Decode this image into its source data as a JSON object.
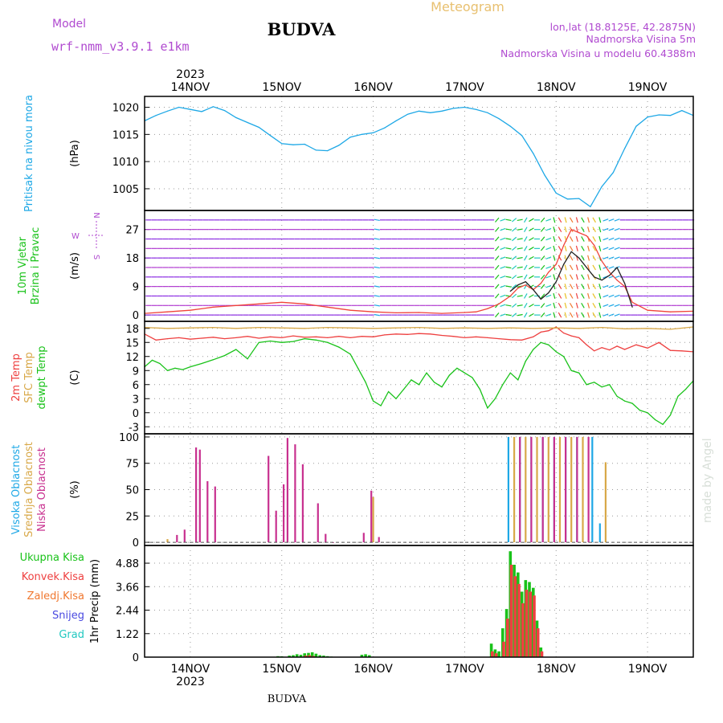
{
  "header": {
    "model_label": "Model",
    "model_name": "wrf-nmm_v3.9.1 e1km",
    "location": "BUDVA",
    "title": "Meteogram",
    "coords": "lon,lat (18.8125E, 42.2875N)",
    "altitude": "Nadmorska Visina 5m",
    "model_altitude": "Nadmorska Visina u modelu 60.4388m"
  },
  "footer": {
    "location": "BUDVA",
    "credit": "made by Angel"
  },
  "colors": {
    "pressure": "#1ea8e6",
    "wind_label": "#19c219",
    "wind_speed": "#f0433a",
    "wind_dir": "#202020",
    "temp2m": "#ee4040",
    "sfc_temp": "#d8a848",
    "dewpt": "#19c219",
    "cloud_high": "#1ea8e6",
    "cloud_mid": "#d8a848",
    "cloud_low": "#c8308f",
    "precip_total": "#19c219",
    "precip_conv": "#ee4040",
    "precip_frz": "#f07830",
    "snow": "#4a4ae0",
    "hail": "#20c8c0",
    "purple_text": "#b04ad0",
    "gold_text": "#e8c070"
  },
  "time_axis": {
    "year": "2023",
    "ticks": [
      "14NOV",
      "15NOV",
      "16NOV",
      "17NOV",
      "18NOV",
      "19NOV"
    ],
    "tick_hours": [
      0,
      24,
      48,
      72,
      96,
      120
    ],
    "range_hours": [
      -12,
      132
    ]
  },
  "chart_data": [
    {
      "type": "line",
      "name": "pressure",
      "label_lines": [
        "Pritisak na nivou mora"
      ],
      "unit": "(hPa)",
      "yticks": [
        1005,
        1010,
        1015,
        1020
      ],
      "ylim": [
        1001,
        1022
      ],
      "series": [
        {
          "color_key": "pressure",
          "x": [
            -12,
            -9,
            -6,
            -3,
            0,
            3,
            6,
            9,
            12,
            15,
            18,
            21,
            24,
            27,
            30,
            33,
            36,
            39,
            42,
            45,
            48,
            51,
            54,
            57,
            60,
            63,
            66,
            69,
            72,
            75,
            78,
            81,
            84,
            87,
            90,
            93,
            96,
            99,
            102,
            105,
            108,
            111,
            114,
            117,
            120,
            123,
            126,
            129,
            132
          ],
          "y": [
            1017.5,
            1018.5,
            1019.3,
            1020,
            1019.6,
            1019.2,
            1020.1,
            1019.4,
            1018.1,
            1017.2,
            1016.3,
            1014.8,
            1013.3,
            1013.1,
            1013.2,
            1012.1,
            1012.0,
            1013.0,
            1014.5,
            1015.0,
            1015.3,
            1016.2,
            1017.5,
            1018.7,
            1019.3,
            1019.0,
            1019.3,
            1019.8,
            1020.0,
            1019.6,
            1019.0,
            1017.9,
            1016.5,
            1014.8,
            1011.5,
            1007.5,
            1004.2,
            1003.1,
            1003.2,
            1001.7,
            1005.4,
            1008.0,
            1012.4,
            1016.5,
            1018.2,
            1018.6,
            1018.5,
            1019.4,
            1018.5
          ]
        }
      ]
    },
    {
      "type": "line",
      "name": "wind",
      "label_lines": [
        "10m Vjetar",
        "Brzina i Pravac"
      ],
      "unit": "(m/s)",
      "compass": {
        "n": "N",
        "w": "W",
        "s": "S"
      },
      "yticks": [
        0,
        9,
        18,
        27
      ],
      "ylim": [
        -2,
        33
      ],
      "barb_levels_ms": [
        0,
        3,
        6,
        9,
        12,
        15,
        18,
        21,
        24,
        27,
        30,
        33
      ],
      "series": [
        {
          "color_key": "wind_speed",
          "x": [
            -12,
            -6,
            0,
            6,
            12,
            18,
            24,
            30,
            36,
            42,
            48,
            54,
            60,
            66,
            72,
            75,
            78,
            81,
            84,
            86,
            88,
            90,
            92,
            94,
            96,
            98,
            100,
            102,
            104,
            106,
            108,
            110,
            112,
            114,
            116,
            120,
            126,
            132
          ],
          "y": [
            0.5,
            1.0,
            1.5,
            2.5,
            3.0,
            3.5,
            4.0,
            3.5,
            2.5,
            1.5,
            1.0,
            0.7,
            0.8,
            0.5,
            0.8,
            1.0,
            2.0,
            3.5,
            6.0,
            8.5,
            9.5,
            8.0,
            10.0,
            13.5,
            16.0,
            22.0,
            27.0,
            26.0,
            25.0,
            22.0,
            17.0,
            13.5,
            11.0,
            9.0,
            4.0,
            1.5,
            1.0,
            1.2
          ]
        },
        {
          "color_key": "wind_dir",
          "x": [
            84,
            86,
            88,
            90,
            92,
            94,
            96,
            98,
            100,
            102,
            104,
            106,
            108,
            110,
            112,
            114,
            116
          ],
          "y": [
            7.5,
            9.5,
            10.5,
            8.0,
            5.0,
            7.0,
            10.5,
            16.0,
            20.0,
            18.0,
            15.0,
            12.0,
            11.0,
            12.5,
            15.0,
            10.0,
            2.5
          ]
        }
      ]
    },
    {
      "type": "line",
      "name": "temperature",
      "label_lines": [
        "2m Temp",
        "SFC Temp",
        "dewpt Temp"
      ],
      "unit": "(C)",
      "yticks": [
        -3,
        0,
        3,
        6,
        9,
        12,
        15,
        18
      ],
      "ylim": [
        -4.5,
        19.5
      ],
      "series": [
        {
          "name": "2m Temp",
          "color_key": "temp2m",
          "x": [
            -12,
            -9,
            -6,
            -3,
            0,
            3,
            6,
            9,
            12,
            15,
            18,
            21,
            24,
            27,
            30,
            33,
            36,
            39,
            42,
            45,
            48,
            51,
            54,
            57,
            60,
            63,
            66,
            69,
            72,
            75,
            78,
            81,
            84,
            87,
            90,
            92,
            94,
            96,
            98,
            100,
            102,
            104,
            106,
            108,
            110,
            112,
            114,
            117,
            120,
            123,
            126,
            129,
            132
          ],
          "y": [
            16.8,
            15.5,
            15.8,
            16.0,
            15.7,
            15.9,
            16.1,
            15.8,
            16.0,
            16.3,
            15.9,
            16.2,
            16.0,
            16.4,
            16.1,
            16.2,
            16.0,
            16.3,
            16.0,
            16.3,
            16.2,
            16.6,
            16.8,
            16.7,
            16.9,
            16.8,
            16.5,
            16.3,
            16.0,
            16.2,
            16.0,
            15.8,
            15.6,
            15.5,
            16.2,
            17.2,
            17.5,
            18.3,
            17.0,
            16.4,
            16.0,
            14.5,
            13.2,
            13.9,
            13.4,
            14.2,
            13.5,
            14.5,
            13.8,
            15.0,
            13.3,
            13.2,
            13.0
          ]
        },
        {
          "name": "SFC Temp",
          "color_key": "sfc_temp",
          "x": [
            -12,
            -6,
            0,
            6,
            12,
            18,
            24,
            30,
            36,
            42,
            48,
            54,
            60,
            66,
            72,
            78,
            84,
            90,
            96,
            102,
            108,
            114,
            120,
            126,
            132
          ],
          "y": [
            18.2,
            18.0,
            18.1,
            18.2,
            18.0,
            18.2,
            18.1,
            18.0,
            18.2,
            18.1,
            18.0,
            18.1,
            18.2,
            18.0,
            18.1,
            18.0,
            18.1,
            18.0,
            18.1,
            18.0,
            18.2,
            17.9,
            18.0,
            17.8,
            18.3
          ]
        },
        {
          "name": "dewpt Temp",
          "color_key": "dewpt",
          "x": [
            -12,
            -10,
            -8,
            -6,
            -4,
            -2,
            0,
            3,
            6,
            9,
            12,
            15,
            18,
            21,
            24,
            27,
            30,
            33,
            36,
            39,
            42,
            44,
            46,
            48,
            50,
            52,
            54,
            56,
            58,
            60,
            62,
            64,
            66,
            68,
            70,
            72,
            74,
            76,
            78,
            80,
            82,
            84,
            86,
            88,
            90,
            92,
            94,
            96,
            98,
            100,
            102,
            104,
            106,
            108,
            110,
            112,
            114,
            116,
            118,
            120,
            122,
            124,
            126,
            128,
            130,
            132
          ],
          "y": [
            9.8,
            11.2,
            10.5,
            9.0,
            9.5,
            9.2,
            9.8,
            10.5,
            11.3,
            12.2,
            13.5,
            11.5,
            15.0,
            15.3,
            15.0,
            15.2,
            15.8,
            15.5,
            15.0,
            14.0,
            12.5,
            9.5,
            6.5,
            2.5,
            1.5,
            4.5,
            3.0,
            5.0,
            7.0,
            6.0,
            8.5,
            6.5,
            5.5,
            8.0,
            9.5,
            8.5,
            7.5,
            5.0,
            1.0,
            3.0,
            6.0,
            8.5,
            7.0,
            11.0,
            13.5,
            15.0,
            14.5,
            13.0,
            12.0,
            9.0,
            8.5,
            6.0,
            6.5,
            5.5,
            6.0,
            3.5,
            2.5,
            2.0,
            0.5,
            0.0,
            -1.5,
            -2.5,
            -0.5,
            3.5,
            5.0,
            6.8
          ]
        }
      ]
    },
    {
      "type": "bar",
      "name": "clouds",
      "label_lines": [
        "Visoka Oblacnost",
        "Srednja Oblacnost",
        "Niska Oblacnost"
      ],
      "unit": "(%)",
      "yticks": [
        0,
        25,
        50,
        75,
        100
      ],
      "ylim": [
        -3,
        103
      ],
      "series": [
        {
          "name": "Visoka Oblacnost",
          "color_key": "cloud_high",
          "x": [
            84,
            87,
            90,
            93,
            96,
            99,
            102,
            106,
            108
          ],
          "y": [
            100,
            100,
            100,
            100,
            100,
            100,
            100,
            100,
            18
          ]
        },
        {
          "name": "Srednja Oblacnost",
          "color_key": "cloud_mid",
          "x": [
            -6,
            48,
            85,
            88,
            91,
            94,
            97,
            100,
            103,
            109
          ],
          "y": [
            3,
            43,
            100,
            100,
            100,
            100,
            100,
            100,
            100,
            76
          ]
        },
        {
          "name": "Niska Oblacnost",
          "color_key": "cloud_low",
          "x": [
            -4,
            -2,
            1,
            2,
            4,
            6,
            20,
            22,
            24,
            25,
            27,
            29,
            33,
            35,
            37,
            45,
            47,
            49,
            86,
            89,
            92,
            95,
            98,
            101,
            104
          ],
          "y": [
            7,
            12,
            90,
            88,
            58,
            53,
            82,
            30,
            55,
            99,
            93,
            74,
            37,
            8,
            0,
            9,
            49,
            5,
            100,
            100,
            100,
            100,
            100,
            100,
            100
          ]
        }
      ]
    },
    {
      "type": "bar",
      "name": "precipitation",
      "label_lines": [
        "Ukupna Kisa",
        "Konvek.Kisa",
        "Zaledj.Kisa",
        "Snijeg",
        "Grad"
      ],
      "label_keys": [
        "precip_total",
        "precip_conv",
        "precip_frz",
        "snow",
        "hail"
      ],
      "unit": "1hr Precip (mm)",
      "yticks": [
        0,
        1.22,
        2.44,
        3.66,
        4.88
      ],
      "ylim": [
        0,
        5.8
      ],
      "series": [
        {
          "name": "Ukupna Kisa",
          "color_key": "precip_total",
          "x": [
            23,
            24,
            26,
            27,
            28,
            29,
            30,
            31,
            32,
            33,
            34,
            35,
            36,
            37,
            45,
            46,
            47,
            79,
            80,
            81,
            82,
            83,
            84,
            85,
            86,
            87,
            88,
            89,
            90,
            91,
            92
          ],
          "y": [
            0.05,
            0.04,
            0.08,
            0.1,
            0.15,
            0.12,
            0.2,
            0.22,
            0.25,
            0.18,
            0.1,
            0.08,
            0.05,
            0.03,
            0.12,
            0.15,
            0.1,
            0.7,
            0.4,
            0.3,
            1.5,
            2.5,
            5.5,
            4.8,
            4.4,
            3.4,
            4.0,
            3.9,
            3.6,
            1.9,
            0.5
          ]
        },
        {
          "name": "Konvek.Kisa",
          "color_key": "precip_conv",
          "x": [
            30,
            31,
            32,
            79,
            80,
            82,
            83,
            84,
            85,
            86,
            87,
            88,
            89,
            90,
            91,
            92
          ],
          "y": [
            0.08,
            0.1,
            0.06,
            0.3,
            0.2,
            0.8,
            2.0,
            4.8,
            4.2,
            3.8,
            2.8,
            3.5,
            3.4,
            3.2,
            1.5,
            0.3
          ]
        }
      ]
    }
  ]
}
